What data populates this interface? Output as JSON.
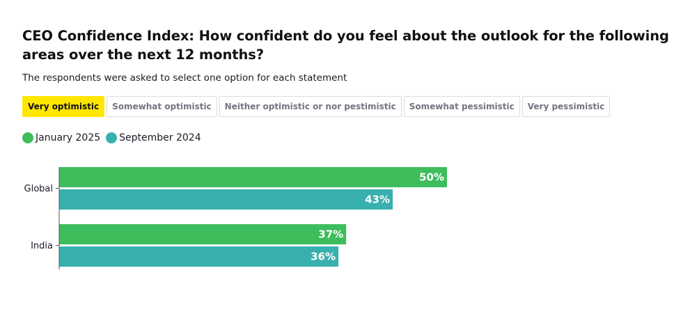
{
  "title": "CEO Confidence Index: How confident do you feel about the outlook for the following areas over the next 12 months?",
  "subtitle": "The respondents were asked to select one option for each statement",
  "tabs": [
    {
      "label": "Very optimistic",
      "active": true
    },
    {
      "label": "Somewhat optimistic",
      "active": false
    },
    {
      "label": "Neither optimistic or nor pestimistic",
      "active": false
    },
    {
      "label": "Somewhat pessimistic",
      "active": false
    },
    {
      "label": "Very pessimistic",
      "active": false
    }
  ],
  "legend": [
    {
      "name": "January 2025",
      "color": "#3dbd5c"
    },
    {
      "name": "September 2024",
      "color": "#38b0ae"
    }
  ],
  "chart_data": {
    "type": "bar",
    "orientation": "horizontal",
    "categories": [
      "Global",
      "India"
    ],
    "series": [
      {
        "name": "January 2025",
        "color": "#3dbd5c",
        "values": [
          50,
          37
        ]
      },
      {
        "name": "September 2024",
        "color": "#38b0ae",
        "values": [
          43,
          36
        ]
      }
    ],
    "value_labels": [
      [
        "50%",
        "37%"
      ],
      [
        "43%",
        "36%"
      ]
    ],
    "xlim": [
      0,
      100
    ],
    "xlabel": "",
    "ylabel": "",
    "grid": false,
    "legend_position": "top-left"
  }
}
